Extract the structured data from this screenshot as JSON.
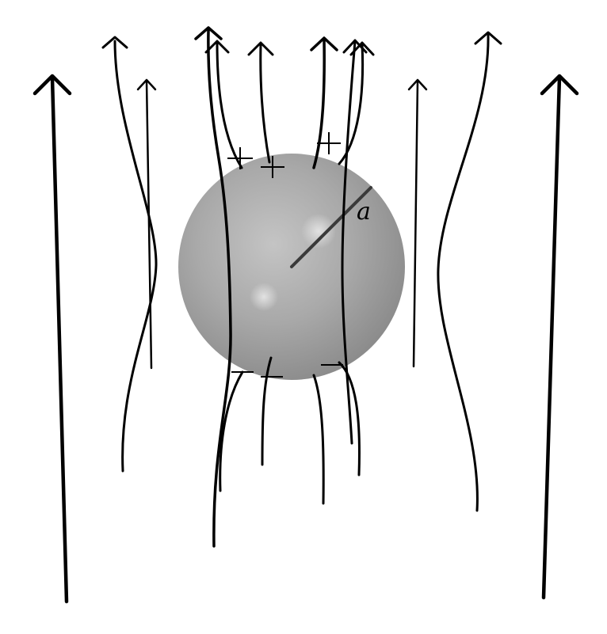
{
  "diagram": {
    "sphere": {
      "radius_label": "a",
      "fill_color": "#a6a6a6",
      "highlight_color": "#d9d9d9"
    },
    "field_line_color": "#000000",
    "surface_charges": {
      "top_symbol": "+",
      "bottom_symbol": "−"
    }
  }
}
